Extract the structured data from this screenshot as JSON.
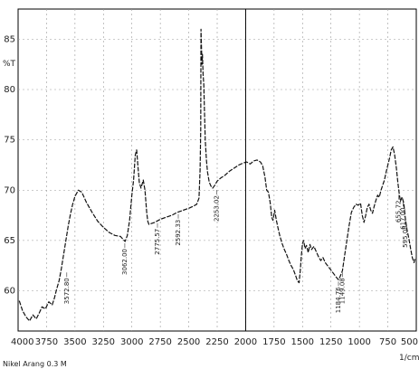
{
  "chart_data": {
    "type": "line",
    "title": "",
    "xlabel": "1/cm",
    "ylabel": "%T",
    "caption": "Nikel Arang 0.3 M",
    "xlim": [
      4000,
      500
    ],
    "ylim": [
      56,
      88
    ],
    "x_ticks": [
      4000,
      3750,
      3500,
      3250,
      3000,
      2750,
      2500,
      2250,
      2000,
      1750,
      1500,
      1250,
      1000,
      750,
      500
    ],
    "x_tick_labels": [
      "4000",
      "3750",
      "3500",
      "3250",
      "3000",
      "2750",
      "2500",
      "2250",
      "2000",
      "1750",
      "1500",
      "1250",
      "1000",
      "750",
      "500"
    ],
    "y_ticks": [
      60,
      65,
      70,
      75,
      80,
      85
    ],
    "y_tick_labels": [
      "60",
      "65",
      "70",
      "75",
      "80",
      "85"
    ],
    "grid": true,
    "marker_line_x": 2000,
    "series": [
      {
        "points": [
          [
            3990,
            59.0
          ],
          [
            3960,
            58.0
          ],
          [
            3930,
            57.4
          ],
          [
            3900,
            57.0
          ],
          [
            3870,
            57.6
          ],
          [
            3840,
            57.2
          ],
          [
            3810,
            57.9
          ],
          [
            3790,
            58.4
          ],
          [
            3760,
            58.2
          ],
          [
            3730,
            58.9
          ],
          [
            3700,
            58.6
          ],
          [
            3680,
            59.3
          ],
          [
            3660,
            60.2
          ],
          [
            3640,
            61.0
          ],
          [
            3620,
            62.2
          ],
          [
            3600,
            63.6
          ],
          [
            3580,
            65.0
          ],
          [
            3560,
            66.4
          ],
          [
            3540,
            67.6
          ],
          [
            3520,
            68.6
          ],
          [
            3500,
            69.4
          ],
          [
            3470,
            70.0
          ],
          [
            3440,
            69.8
          ],
          [
            3400,
            68.8
          ],
          [
            3350,
            67.8
          ],
          [
            3300,
            66.9
          ],
          [
            3250,
            66.3
          ],
          [
            3200,
            65.8
          ],
          [
            3150,
            65.5
          ],
          [
            3100,
            65.4
          ],
          [
            3060,
            64.9
          ],
          [
            3040,
            65.5
          ],
          [
            3020,
            67.0
          ],
          [
            3000,
            69.5
          ],
          [
            2985,
            71.0
          ],
          [
            2970,
            73.5
          ],
          [
            2958,
            74.0
          ],
          [
            2948,
            72.5
          ],
          [
            2935,
            70.8
          ],
          [
            2920,
            70.2
          ],
          [
            2900,
            71.0
          ],
          [
            2885,
            70.0
          ],
          [
            2870,
            67.8
          ],
          [
            2860,
            66.9
          ],
          [
            2850,
            66.6
          ],
          [
            2800,
            66.8
          ],
          [
            2750,
            67.1
          ],
          [
            2700,
            67.3
          ],
          [
            2650,
            67.5
          ],
          [
            2600,
            67.8
          ],
          [
            2550,
            68.0
          ],
          [
            2500,
            68.2
          ],
          [
            2460,
            68.4
          ],
          [
            2430,
            68.6
          ],
          [
            2410,
            69.2
          ],
          [
            2400,
            72.0
          ],
          [
            2395,
            76.0
          ],
          [
            2392,
            86.0
          ],
          [
            2388,
            84.0
          ],
          [
            2384,
            82.5
          ],
          [
            2380,
            83.5
          ],
          [
            2374,
            81.5
          ],
          [
            2368,
            80.5
          ],
          [
            2362,
            78.0
          ],
          [
            2355,
            75.0
          ],
          [
            2345,
            73.0
          ],
          [
            2335,
            71.8
          ],
          [
            2320,
            70.8
          ],
          [
            2305,
            70.4
          ],
          [
            2290,
            70.2
          ],
          [
            2270,
            70.5
          ],
          [
            2250,
            70.9
          ],
          [
            2220,
            71.2
          ],
          [
            2180,
            71.5
          ],
          [
            2140,
            71.9
          ],
          [
            2100,
            72.2
          ],
          [
            2060,
            72.5
          ],
          [
            2020,
            72.7
          ],
          [
            1990,
            72.8
          ],
          [
            1960,
            72.6
          ],
          [
            1930,
            72.9
          ],
          [
            1900,
            73.0
          ],
          [
            1870,
            72.8
          ],
          [
            1850,
            72.4
          ],
          [
            1830,
            71.3
          ],
          [
            1815,
            70.0
          ],
          [
            1800,
            69.8
          ],
          [
            1785,
            68.8
          ],
          [
            1770,
            67.3
          ],
          [
            1760,
            67.0
          ],
          [
            1745,
            68.0
          ],
          [
            1730,
            67.0
          ],
          [
            1715,
            66.2
          ],
          [
            1700,
            65.5
          ],
          [
            1680,
            64.7
          ],
          [
            1660,
            64.1
          ],
          [
            1640,
            63.6
          ],
          [
            1620,
            63.0
          ],
          [
            1600,
            62.5
          ],
          [
            1580,
            62.1
          ],
          [
            1560,
            61.5
          ],
          [
            1545,
            61.0
          ],
          [
            1530,
            60.8
          ],
          [
            1520,
            62.0
          ],
          [
            1510,
            63.5
          ],
          [
            1500,
            64.7
          ],
          [
            1490,
            65.0
          ],
          [
            1478,
            64.2
          ],
          [
            1465,
            64.5
          ],
          [
            1450,
            63.8
          ],
          [
            1435,
            64.6
          ],
          [
            1420,
            64.1
          ],
          [
            1400,
            64.4
          ],
          [
            1380,
            63.9
          ],
          [
            1360,
            63.4
          ],
          [
            1340,
            63.0
          ],
          [
            1320,
            63.3
          ],
          [
            1300,
            62.8
          ],
          [
            1280,
            62.5
          ],
          [
            1260,
            62.2
          ],
          [
            1240,
            61.9
          ],
          [
            1220,
            61.6
          ],
          [
            1200,
            61.3
          ],
          [
            1184,
            61.1
          ],
          [
            1170,
            61.4
          ],
          [
            1149,
            62.0
          ],
          [
            1130,
            63.5
          ],
          [
            1110,
            65.0
          ],
          [
            1090,
            66.5
          ],
          [
            1070,
            67.8
          ],
          [
            1050,
            68.3
          ],
          [
            1030,
            68.6
          ],
          [
            1010,
            68.5
          ],
          [
            990,
            68.7
          ],
          [
            975,
            67.5
          ],
          [
            960,
            66.8
          ],
          [
            945,
            67.5
          ],
          [
            930,
            68.3
          ],
          [
            915,
            68.6
          ],
          [
            900,
            68.0
          ],
          [
            885,
            67.7
          ],
          [
            870,
            68.4
          ],
          [
            855,
            69.0
          ],
          [
            840,
            69.5
          ],
          [
            825,
            69.3
          ],
          [
            810,
            70.0
          ],
          [
            795,
            70.5
          ],
          [
            780,
            71.0
          ],
          [
            765,
            71.8
          ],
          [
            750,
            72.5
          ],
          [
            735,
            73.2
          ],
          [
            720,
            74.0
          ],
          [
            705,
            74.3
          ],
          [
            690,
            73.5
          ],
          [
            675,
            72.2
          ],
          [
            662,
            70.8
          ],
          [
            650,
            69.7
          ],
          [
            640,
            68.9
          ],
          [
            625,
            69.3
          ],
          [
            610,
            68.7
          ],
          [
            596,
            67.2
          ],
          [
            580,
            66.0
          ],
          [
            565,
            65.2
          ],
          [
            550,
            64.2
          ],
          [
            535,
            63.3
          ],
          [
            520,
            62.8
          ],
          [
            508,
            63.3
          ]
        ]
      }
    ],
    "peak_labels": [
      {
        "x": 3572,
        "y": 62.0,
        "text": "3572.80"
      },
      {
        "x": 3062,
        "y": 64.9,
        "text": "3062.00"
      },
      {
        "x": 2775,
        "y": 66.9,
        "text": "2775.57"
      },
      {
        "x": 2592,
        "y": 67.8,
        "text": "2592.33"
      },
      {
        "x": 2253,
        "y": 70.2,
        "text": "2253.02"
      },
      {
        "x": 1184,
        "y": 61.1,
        "text": "1184.76"
      },
      {
        "x": 1149,
        "y": 62.0,
        "text": "1149.08"
      },
      {
        "x": 655,
        "y": 69.7,
        "text": "655.72"
      },
      {
        "x": 617,
        "y": 69.0,
        "text": "617.00"
      },
      {
        "x": 595,
        "y": 67.2,
        "text": "595.08"
      }
    ]
  }
}
